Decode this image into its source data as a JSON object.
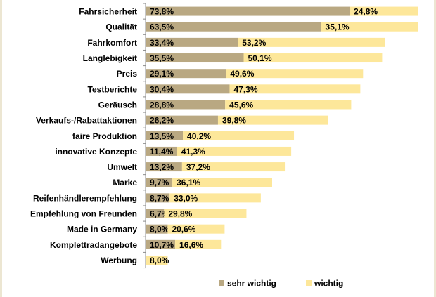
{
  "chart_data": {
    "type": "bar",
    "orientation": "horizontal",
    "stacked": true,
    "title": "",
    "xlabel": "",
    "ylabel": "",
    "grid": false,
    "legend_position": "bottom",
    "categories": [
      "Fahrsicherheit",
      "Qualität",
      "Fahrkomfort",
      "Langlebigkeit",
      "Preis",
      "Testberichte",
      "Geräusch",
      "Verkaufs-/Rabattaktionen",
      "faire Produktion",
      "innovative Konzepte",
      "Umwelt",
      "Marke",
      "Reifenhändlerempfehlung",
      "Empfehlung von Freunden",
      "Made in Germany",
      "Komplettradangebote",
      "Werbung"
    ],
    "series": [
      {
        "name": "sehr wichtig",
        "color": "#b9a882",
        "values": [
          73.8,
          63.5,
          33.4,
          35.5,
          29.1,
          30.4,
          28.8,
          26.2,
          13.5,
          11.4,
          13.2,
          9.7,
          8.7,
          6.7,
          8.0,
          10.7,
          0
        ],
        "labels": [
          "73,8%",
          "63,5%",
          "33,4%",
          "35,5%",
          "29,1%",
          "30,4%",
          "28,8%",
          "26,2%",
          "13,5%",
          "11,4%",
          "13,2%",
          "9,7%",
          "8,7%",
          "6,7%",
          "8,0%",
          "10,7%",
          ""
        ]
      },
      {
        "name": "wichtig",
        "color": "#fde79a",
        "values": [
          24.8,
          35.1,
          53.2,
          50.1,
          49.6,
          47.3,
          45.6,
          39.8,
          40.2,
          41.3,
          37.2,
          36.1,
          33.0,
          29.8,
          20.6,
          16.6,
          8.0
        ],
        "labels": [
          "24,8%",
          "35,1%",
          "53,2%",
          "50,1%",
          "49,6%",
          "47,3%",
          "45,6%",
          "39,8%",
          "40,2%",
          "41,3%",
          "37,2%",
          "36,1%",
          "33,0%",
          "29,8%",
          "20,6%",
          "16,6%",
          "8,0%"
        ]
      }
    ],
    "xlim": [
      0,
      100
    ]
  }
}
